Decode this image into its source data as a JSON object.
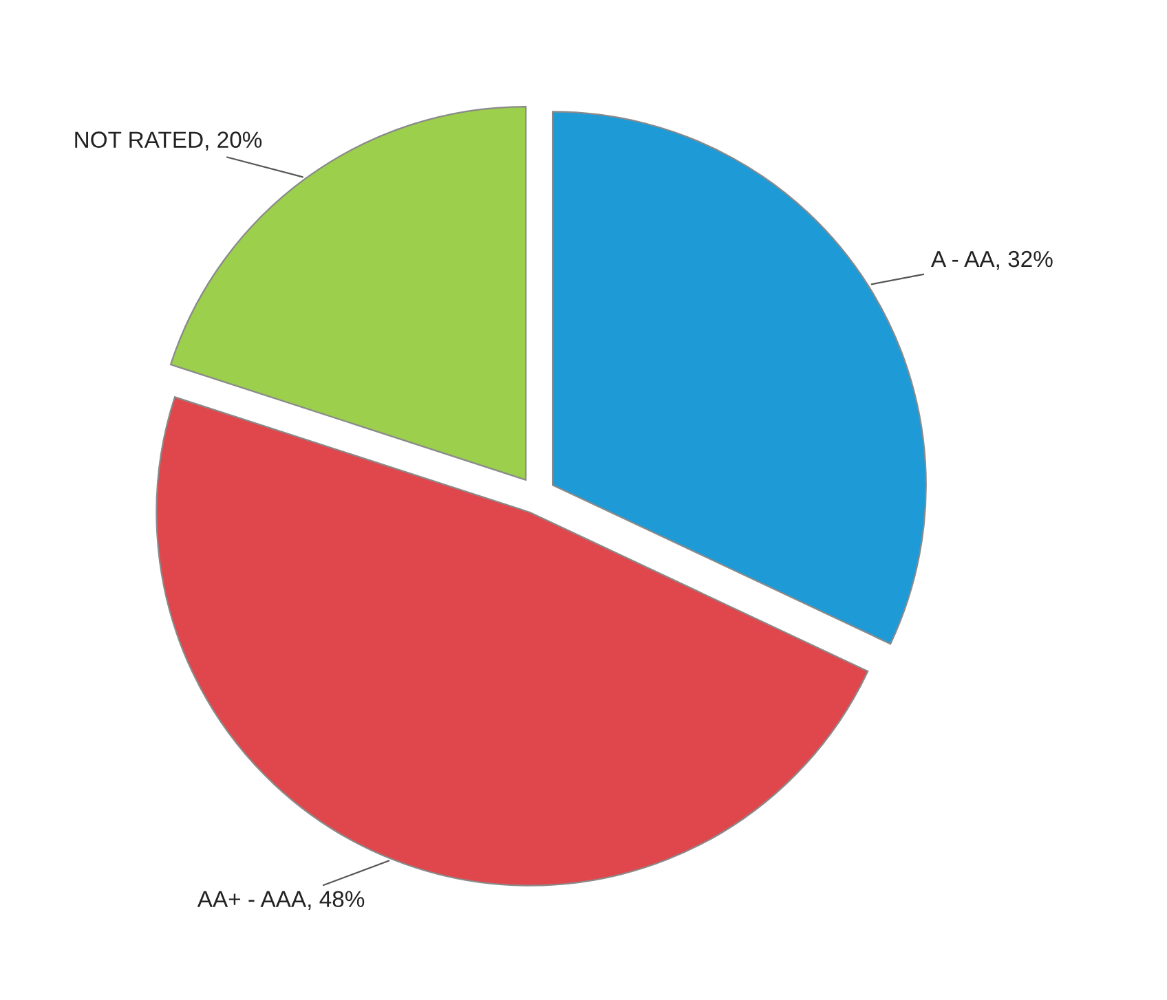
{
  "chart_data": {
    "type": "pie",
    "categories": [
      "A - AA",
      "AA+ - AAA",
      "NOT RATED"
    ],
    "values": [
      32,
      48,
      20
    ],
    "value_labels": [
      "32%",
      "48%",
      "20%"
    ],
    "colors": [
      "#1e9bd7",
      "#e0474c",
      "#9bcf4c"
    ],
    "legend": false
  }
}
